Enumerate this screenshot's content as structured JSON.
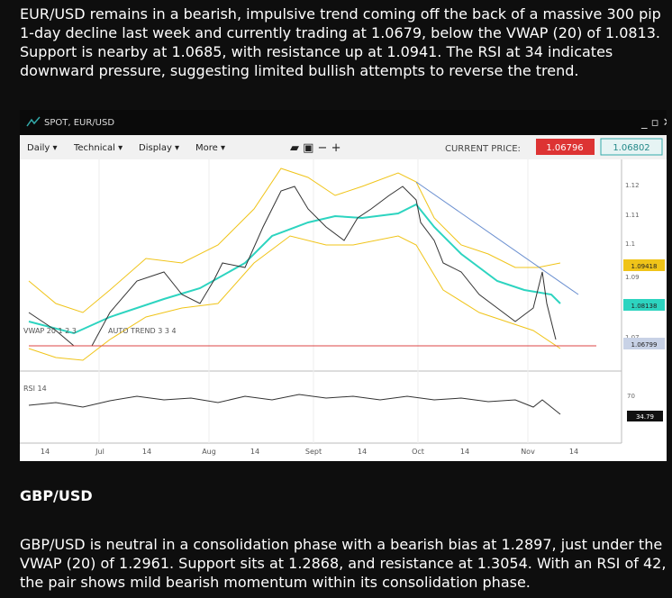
{
  "article": {
    "paragraph_1": "EUR/USD remains in a bearish, impulsive trend coming off the back of a massive 300 pip 1-day decline last week and currently trading at 1.0679, below the VWAP (20) of 1.0813. Support is nearby at 1.0685, with resistance up at 1.0941. The RSI at 34 indicates downward pressure, suggesting limited bullish attempts to reverse the trend.",
    "heading": "GBP/USD",
    "paragraph_2": "GBP/USD is neutral in a consolidation phase with a bearish bias at 1.2897, just under the VWAP (20) of 1.2961. Support sits at 1.2868, and resistance at 1.3054. With an RSI of 42, the pair shows mild bearish momentum within its consolidation phase."
  },
  "chart": {
    "title": "SPOT, EUR/USD",
    "toolbar": [
      "Daily ▾",
      "Technical ▾",
      "Display ▾",
      "More ▾"
    ],
    "current_price_label": "CURRENT PRICE:",
    "bid": "1.06796",
    "ask": "1.06802",
    "legend": [
      "VWAP 20 1 2 3",
      "AUTO TREND 3 3 4",
      "RSI 14"
    ],
    "price_axis": [
      "1.12",
      "1.11",
      "1.1",
      "1.09",
      "1.07"
    ],
    "price_flags": [
      {
        "text": "1.09418",
        "color": "#f0c419"
      },
      {
        "text": "1.08138",
        "color": "#2dd4c0"
      },
      {
        "text": "1.06799",
        "color": "#c8d2e6"
      }
    ],
    "rsi_axis": [
      "70"
    ],
    "rsi_flag": "34.79",
    "time_axis": [
      "14",
      "Jul",
      "14",
      "Aug",
      "14",
      "Sept",
      "14",
      "Oct",
      "14",
      "Nov",
      "14"
    ]
  }
}
